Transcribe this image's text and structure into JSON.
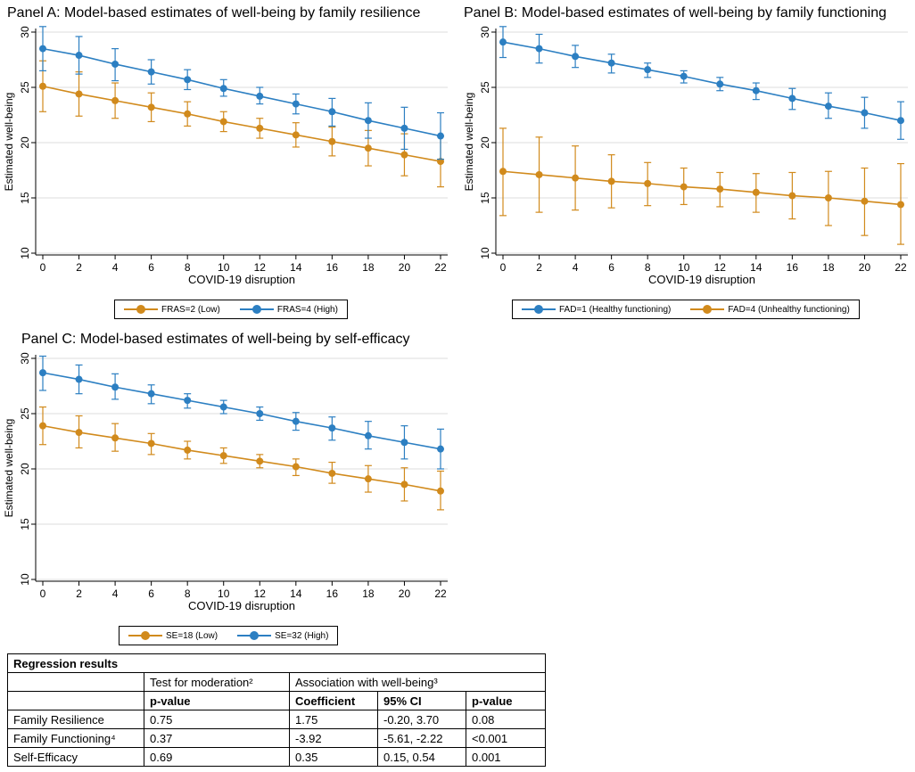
{
  "colors": {
    "high": "#2c7fc2",
    "low": "#d18a1c",
    "axis": "#000",
    "grid": "#dcdcdc"
  },
  "chart_data": [
    {
      "type": "line",
      "title": "Panel A: Model-based estimates of well-being by family resilience",
      "xlabel": "COVID-19 disruption",
      "ylabel": "Estimated well-being",
      "xlim": [
        0,
        22
      ],
      "ylim": [
        10,
        30
      ],
      "xticks": [
        "0",
        "2",
        "4",
        "6",
        "8",
        "10",
        "12",
        "14",
        "16",
        "18",
        "20",
        "22"
      ],
      "yticks": [
        "10",
        "15",
        "20",
        "25",
        "30"
      ],
      "x": [
        0,
        2,
        4,
        6,
        8,
        10,
        12,
        14,
        16,
        18,
        20,
        22
      ],
      "legend_position": "bottom",
      "series": [
        {
          "name": "FRAS=2 (Low)",
          "color_key": "low",
          "values": [
            25.1,
            24.4,
            23.8,
            23.2,
            22.6,
            21.9,
            21.3,
            20.7,
            20.1,
            19.5,
            18.9,
            18.3
          ],
          "lower": [
            22.8,
            22.4,
            22.2,
            21.9,
            21.5,
            21.0,
            20.4,
            19.6,
            18.8,
            17.9,
            17.0,
            16.0
          ],
          "upper": [
            27.4,
            26.4,
            25.4,
            24.5,
            23.7,
            22.8,
            22.2,
            21.8,
            21.4,
            21.1,
            20.8,
            20.6
          ]
        },
        {
          "name": "FRAS=4 (High)",
          "color_key": "high",
          "values": [
            28.5,
            27.9,
            27.1,
            26.4,
            25.7,
            24.9,
            24.2,
            23.5,
            22.8,
            22.0,
            21.3,
            20.6
          ],
          "lower": [
            26.5,
            26.2,
            25.6,
            25.3,
            24.8,
            24.2,
            23.5,
            22.6,
            21.5,
            20.4,
            19.4,
            18.5
          ],
          "upper": [
            30.5,
            29.6,
            28.5,
            27.5,
            26.6,
            25.7,
            25.0,
            24.4,
            24.0,
            23.6,
            23.2,
            22.7
          ]
        }
      ]
    },
    {
      "type": "line",
      "title": "Panel B: Model-based estimates of well-being by family functioning",
      "xlabel": "COVID-19 disruption",
      "ylabel": "Estimated well-being",
      "xlim": [
        0,
        22
      ],
      "ylim": [
        10,
        30
      ],
      "xticks": [
        "0",
        "2",
        "4",
        "6",
        "8",
        "10",
        "12",
        "14",
        "16",
        "18",
        "20",
        "22"
      ],
      "yticks": [
        "10",
        "15",
        "20",
        "25",
        "30"
      ],
      "x": [
        0,
        2,
        4,
        6,
        8,
        10,
        12,
        14,
        16,
        18,
        20,
        22
      ],
      "legend_position": "bottom",
      "series": [
        {
          "name": "FAD=1 (Healthy functioning)",
          "color_key": "high",
          "values": [
            29.1,
            28.5,
            27.8,
            27.2,
            26.6,
            26.0,
            25.3,
            24.7,
            24.0,
            23.3,
            22.7,
            22.0
          ],
          "lower": [
            27.7,
            27.2,
            26.8,
            26.3,
            25.9,
            25.4,
            24.7,
            23.9,
            23.0,
            22.2,
            21.3,
            20.3
          ],
          "upper": [
            30.5,
            29.8,
            28.8,
            28.0,
            27.2,
            26.5,
            25.9,
            25.4,
            24.9,
            24.5,
            24.1,
            23.7
          ]
        },
        {
          "name": "FAD=4 (Unhealthy functioning)",
          "color_key": "low",
          "values": [
            17.4,
            17.1,
            16.8,
            16.5,
            16.3,
            16.0,
            15.8,
            15.5,
            15.2,
            15.0,
            14.7,
            14.4
          ],
          "lower": [
            13.4,
            13.7,
            13.9,
            14.1,
            14.3,
            14.4,
            14.2,
            13.7,
            13.1,
            12.5,
            11.6,
            10.8
          ],
          "upper": [
            21.3,
            20.5,
            19.7,
            18.9,
            18.2,
            17.7,
            17.3,
            17.2,
            17.3,
            17.4,
            17.7,
            18.1
          ]
        }
      ]
    },
    {
      "type": "line",
      "title": "Panel C: Model-based estimates of well-being by self-efficacy",
      "xlabel": "COVID-19 disruption",
      "ylabel": "Estimated well-being",
      "xlim": [
        0,
        22
      ],
      "ylim": [
        10,
        30
      ],
      "xticks": [
        "0",
        "2",
        "4",
        "6",
        "8",
        "10",
        "12",
        "14",
        "16",
        "18",
        "20",
        "22"
      ],
      "yticks": [
        "10",
        "15",
        "20",
        "25",
        "30"
      ],
      "x": [
        0,
        2,
        4,
        6,
        8,
        10,
        12,
        14,
        16,
        18,
        20,
        22
      ],
      "legend_position": "bottom",
      "series": [
        {
          "name": "SE=18 (Low)",
          "color_key": "low",
          "values": [
            23.9,
            23.3,
            22.8,
            22.3,
            21.7,
            21.2,
            20.7,
            20.2,
            19.6,
            19.1,
            18.6,
            18.0
          ],
          "lower": [
            22.2,
            21.9,
            21.6,
            21.3,
            20.9,
            20.5,
            20.1,
            19.4,
            18.7,
            17.9,
            17.1,
            16.3
          ],
          "upper": [
            25.6,
            24.8,
            24.1,
            23.2,
            22.5,
            21.9,
            21.3,
            20.9,
            20.6,
            20.3,
            20.1,
            19.8
          ]
        },
        {
          "name": "SE=32 (High)",
          "color_key": "high",
          "values": [
            28.7,
            28.1,
            27.4,
            26.8,
            26.2,
            25.6,
            25.0,
            24.3,
            23.7,
            23.0,
            22.4,
            21.8
          ],
          "lower": [
            27.1,
            26.8,
            26.3,
            25.9,
            25.5,
            25.0,
            24.4,
            23.5,
            22.6,
            21.8,
            20.9,
            20.0
          ],
          "upper": [
            30.2,
            29.4,
            28.6,
            27.6,
            26.8,
            26.2,
            25.6,
            25.1,
            24.7,
            24.3,
            23.9,
            23.6
          ]
        }
      ]
    }
  ],
  "table": {
    "title": "Regression results",
    "group_headers": [
      "Test for moderation²",
      "Association with well-being³"
    ],
    "col_headers": [
      "p-value",
      "Coefficient",
      "95% CI",
      "p-value"
    ],
    "rows": [
      {
        "label": "Family Resilience",
        "cells": [
          "0.75",
          "1.75",
          "-0.20, 3.70",
          "0.08"
        ]
      },
      {
        "label": "Family Functioning⁴",
        "cells": [
          "0.37",
          "-3.92",
          "-5.61, -2.22",
          "<0.001"
        ]
      },
      {
        "label": "Self-Efficacy",
        "cells": [
          "0.69",
          "0.35",
          "0.15, 0.54",
          "0.001"
        ]
      }
    ]
  }
}
